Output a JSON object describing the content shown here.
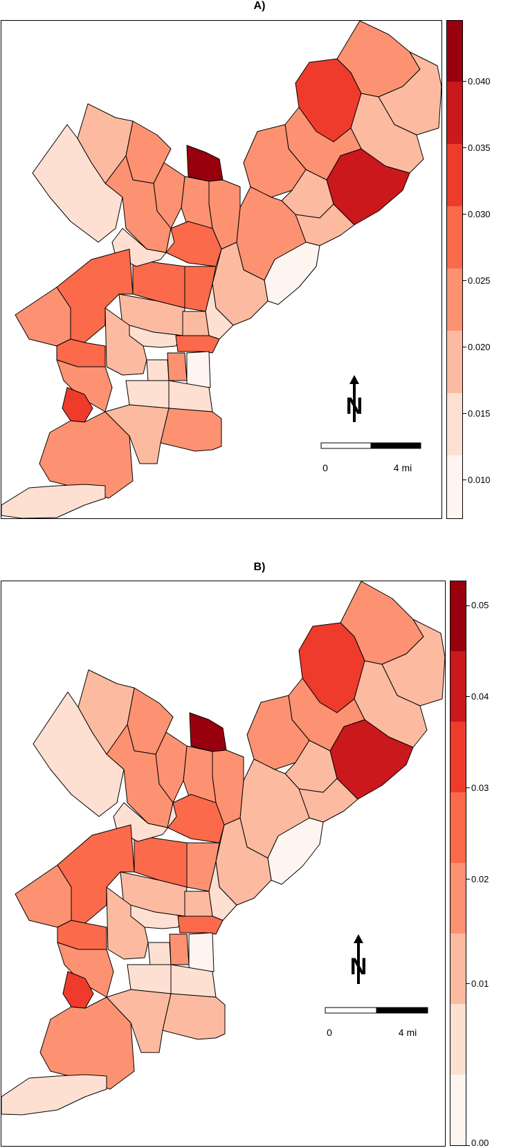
{
  "panels": [
    {
      "id": "a",
      "title": "A)",
      "legend": {
        "tick_labels": [
          "0.040",
          "0.035",
          "0.030",
          "0.025",
          "0.020",
          "0.015",
          "0.010"
        ],
        "bins": [
          "#fff5f0",
          "#fee0d2",
          "#fcbba1",
          "#fc9272",
          "#fb6a4a",
          "#ef3b2c",
          "#cb181d",
          "#99000d"
        ]
      },
      "scale_bar": {
        "start_label": "0",
        "end_label": "4 mi"
      },
      "north_label": "N"
    },
    {
      "id": "b",
      "title": "B)",
      "legend": {
        "tick_labels": [
          "0.05",
          "0.04",
          "0.03",
          "0.02",
          "0.01",
          "0.00"
        ],
        "bins": [
          "#fff5f0",
          "#fee0d2",
          "#fcbba1",
          "#fc9272",
          "#fb6a4a",
          "#ef3b2c",
          "#cb181d",
          "#99000d"
        ]
      },
      "scale_bar": {
        "start_label": "0",
        "end_label": "4 mi"
      },
      "north_label": "N"
    }
  ],
  "palette": {
    "c0": "#fff5f0",
    "c1": "#fee0d2",
    "c2": "#fcbba1",
    "c3": "#fc9272",
    "c4": "#fb6a4a",
    "c5": "#ef3b2c",
    "c6": "#cb181d",
    "c7": "#99000d"
  }
}
